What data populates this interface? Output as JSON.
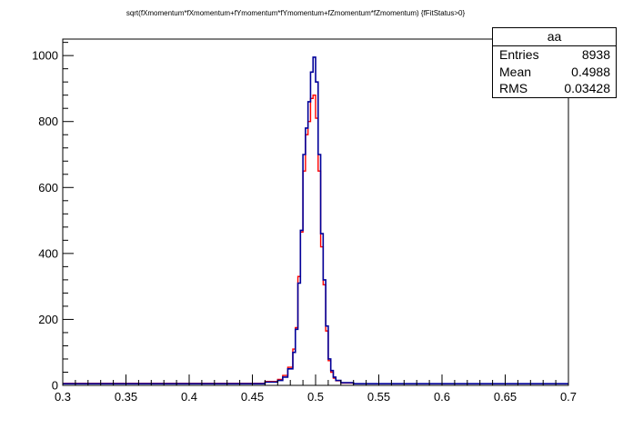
{
  "chart_data": {
    "type": "histogram",
    "title": "sqrt(fXmomentum*fXmomentum+fYmomentum*fYmomentum+fZmomentum*fZmomentum) {fFitStatus>0}",
    "xlim": [
      0.3,
      0.7
    ],
    "ylim": [
      0,
      1050
    ],
    "xticks": [
      "0.3",
      "0.35",
      "0.4",
      "0.45",
      "0.5",
      "0.55",
      "0.6",
      "0.65",
      "0.7"
    ],
    "yticks": [
      "0",
      "200",
      "400",
      "600",
      "800",
      "1000"
    ],
    "bin_width": 0.002,
    "series": [
      {
        "color": "#ff0000",
        "bin_edges": [
          0.3,
          0.46,
          0.47,
          0.474,
          0.478,
          0.482,
          0.484,
          0.486,
          0.488,
          0.49,
          0.492,
          0.494,
          0.496,
          0.498,
          0.5,
          0.502,
          0.504,
          0.506,
          0.508,
          0.51,
          0.512,
          0.514,
          0.516,
          0.52,
          0.53,
          0.7
        ],
        "counts": [
          6,
          12,
          18,
          30,
          55,
          110,
          175,
          330,
          465,
          650,
          760,
          800,
          870,
          880,
          810,
          650,
          420,
          305,
          165,
          75,
          40,
          22,
          14,
          7,
          5
        ]
      },
      {
        "color": "#000099",
        "bin_edges": [
          0.3,
          0.46,
          0.47,
          0.474,
          0.478,
          0.482,
          0.484,
          0.486,
          0.488,
          0.49,
          0.492,
          0.494,
          0.496,
          0.498,
          0.5,
          0.502,
          0.504,
          0.506,
          0.508,
          0.51,
          0.512,
          0.514,
          0.516,
          0.52,
          0.53,
          0.7
        ],
        "counts": [
          5,
          10,
          15,
          25,
          50,
          100,
          170,
          310,
          470,
          700,
          780,
          860,
          950,
          995,
          920,
          700,
          460,
          320,
          180,
          80,
          45,
          25,
          15,
          8,
          5
        ]
      }
    ]
  },
  "stats": {
    "title": "aa",
    "rows": [
      {
        "label": "Entries",
        "value": "8938"
      },
      {
        "label": "Mean",
        "value": "0.4988"
      },
      {
        "label": "RMS",
        "value": "0.03428"
      }
    ]
  }
}
